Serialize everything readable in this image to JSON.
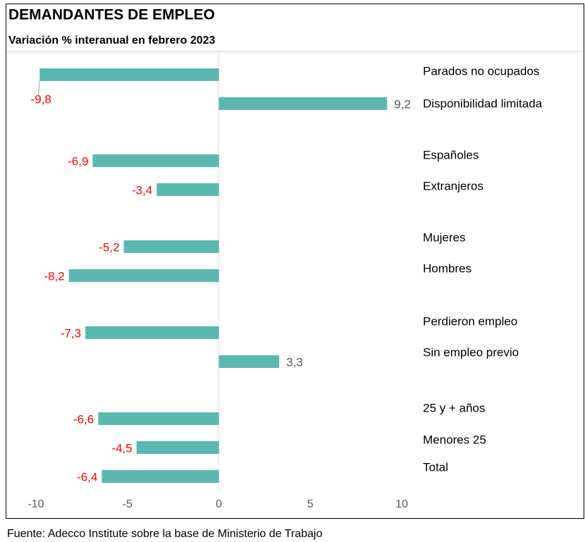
{
  "chart_data": {
    "type": "barh",
    "title": "DEMANDANTES DE EMPLEO",
    "subtitle": "Variación % interanual en febrero 2023",
    "source": "Fuente: Adecco Institute sobre la base de Ministerio de Trabajo",
    "categories": [
      "Parados no ocupados",
      "Disponibilidad limitada",
      "Españoles",
      "Extranjeros",
      "Mujeres",
      "Hombres",
      "Perdieron empleo",
      "Sin empleo previo",
      "25 y + años",
      "Menores 25",
      "Total"
    ],
    "values": [
      -9.8,
      9.2,
      -6.9,
      -3.4,
      -5.2,
      -8.2,
      -7.3,
      3.3,
      -6.6,
      -4.5,
      -6.4
    ],
    "value_labels": [
      "-9,8",
      "9,2",
      "-6,9",
      "-3,4",
      "-5,2",
      "-8,2",
      "-7,3",
      "3,3",
      "-6,6",
      "-4,5",
      "-6,4"
    ],
    "color": "#5bb8b0",
    "negative_label_color": "#ff0000",
    "positive_label_color": "#595959",
    "xlim": [
      -10,
      10
    ],
    "xticks": [
      -10,
      -5,
      0,
      5,
      10
    ],
    "grid": false
  }
}
